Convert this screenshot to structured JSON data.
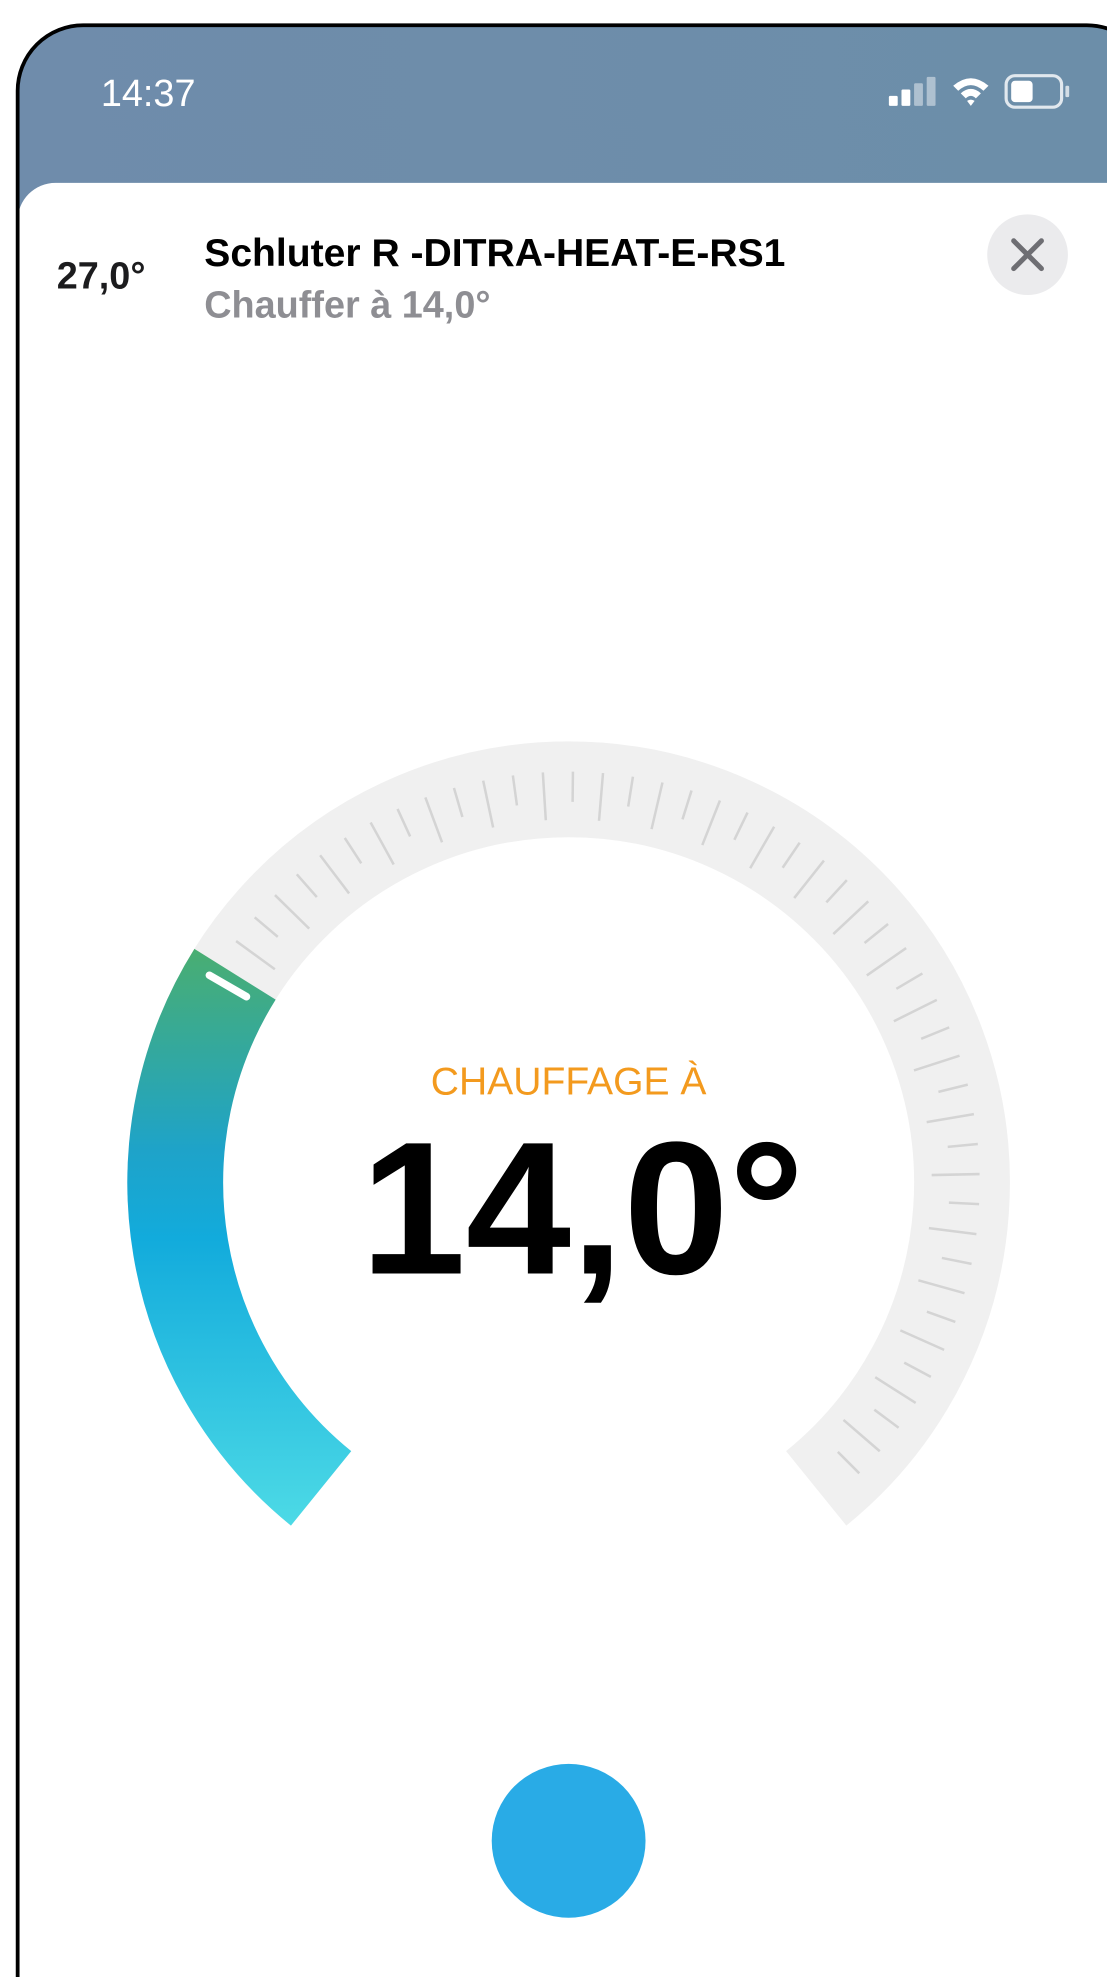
{
  "status_bar": {
    "time": "14:37"
  },
  "header": {
    "current_temp": "27,0°",
    "title": "Schluter R -DITRA-HEAT-E-RS1",
    "subtitle": "Chauffer à 14,0°"
  },
  "dial": {
    "mode_label": "CHAUFFAGE À",
    "setpoint": "14,0°"
  }
}
